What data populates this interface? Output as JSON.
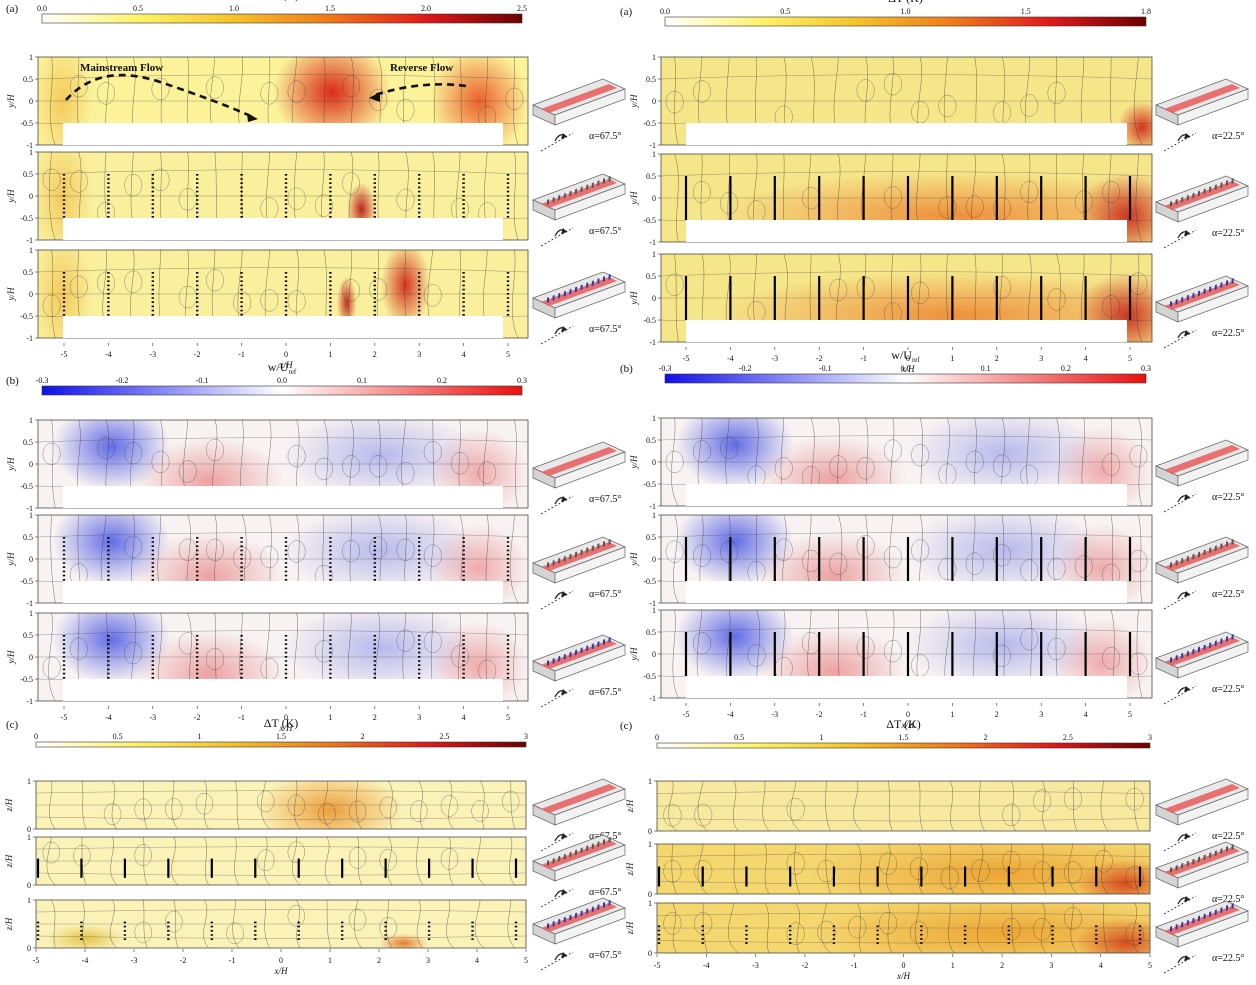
{
  "chart_data": [
    {
      "panel": "(a)",
      "side": "left",
      "type": "heatmap",
      "title": "ΔT (K)",
      "ticks": [
        "0.0",
        "0.5",
        "1.0",
        "1.5",
        "2.0",
        "2.5"
      ],
      "range": [
        0,
        2.5
      ],
      "colormap": "hot",
      "ylabel": "y/H",
      "ylim": [
        -1,
        1
      ],
      "yticks": [
        "1",
        "0.5",
        "0",
        "-0.5",
        "-1"
      ],
      "xlabel": "x/H",
      "xticks": [
        "-5",
        "-4",
        "-3",
        "-2",
        "-1",
        "0",
        "1",
        "2",
        "3",
        "4",
        "5"
      ],
      "xlim": [
        -5.5,
        5.5
      ],
      "annotations": [
        "Mainstream Flow",
        "Reverse Flow"
      ],
      "alpha_label": "α=67.5°"
    },
    {
      "panel": "(a)",
      "side": "right",
      "type": "heatmap",
      "title": "ΔT (K)",
      "ticks": [
        "0.0",
        "0.5",
        "1.0",
        "1.5",
        "1.8"
      ],
      "range": [
        0,
        1.8
      ],
      "colormap": "hot",
      "ylabel": "y/H",
      "ylim": [
        -1,
        1
      ],
      "yticks": [
        "1",
        "0.5",
        "0",
        "-0.5",
        "-1"
      ],
      "xlabel": "x/H",
      "xticks": [
        "-5",
        "-4",
        "-3",
        "-2",
        "-1",
        "0",
        "1",
        "2",
        "3",
        "4",
        "5"
      ],
      "xlim": [
        -5.5,
        5.5
      ],
      "alpha_label": "α=22.5°"
    },
    {
      "panel": "(b)",
      "side": "left",
      "type": "heatmap",
      "title": "w/U",
      "title_sub": "ref",
      "ticks": [
        "-0.3",
        "-0.2",
        "-0.1",
        "0.0",
        "0.1",
        "0.2",
        "0.3"
      ],
      "range": [
        -0.3,
        0.3
      ],
      "colormap": "bwr",
      "ylabel": "y/H",
      "ylim": [
        -1,
        1
      ],
      "yticks": [
        "1",
        "0.5",
        "0",
        "-0.5",
        "-1"
      ],
      "xlabel": "x/H",
      "xticks": [
        "-5",
        "-4",
        "-3",
        "-2",
        "-1",
        "0",
        "1",
        "2",
        "3",
        "4",
        "5"
      ],
      "alpha_label": "α=67.5°"
    },
    {
      "panel": "(b)",
      "side": "right",
      "type": "heatmap",
      "title": "w/U",
      "title_sub": "ref",
      "ticks": [
        "-0.3",
        "-0.2",
        "-0.1",
        "0.0",
        "0.1",
        "0.2",
        "0.3"
      ],
      "range": [
        -0.3,
        0.3
      ],
      "colormap": "bwr",
      "ylabel": "y/H",
      "ylim": [
        -1,
        1
      ],
      "yticks": [
        "1",
        "0.5",
        "0",
        "-0.5",
        "-1"
      ],
      "xlabel": "x/H",
      "xticks": [
        "-5",
        "-4",
        "-3",
        "-2",
        "-1",
        "0",
        "1",
        "2",
        "3",
        "4",
        "5"
      ],
      "alpha_label": "α=22.5°"
    },
    {
      "panel": "(c)",
      "side": "left",
      "type": "heatmap",
      "title": "ΔT (K)",
      "ticks": [
        "0",
        "0.5",
        "1",
        "1.5",
        "2",
        "2.5",
        "3"
      ],
      "range": [
        0,
        3
      ],
      "colormap": "hot",
      "ylabel": "z/H",
      "ylim": [
        0,
        1
      ],
      "yticks": [
        "1",
        "0"
      ],
      "xlabel": "x/H",
      "xticks": [
        "-5",
        "-4",
        "-3",
        "-2",
        "-1",
        "0",
        "1",
        "2",
        "3",
        "4",
        "5"
      ],
      "xlim": [
        -5,
        5
      ],
      "alpha_label": "α=67.5°"
    },
    {
      "panel": "(c)",
      "side": "right",
      "type": "heatmap",
      "title": "ΔT (K)",
      "ticks": [
        "0",
        "0.5",
        "1",
        "1.5",
        "2",
        "2.5",
        "3"
      ],
      "range": [
        0,
        3
      ],
      "colormap": "hot",
      "ylabel": "z/H",
      "ylim": [
        0,
        1
      ],
      "yticks": [
        "1",
        "0"
      ],
      "xlabel": "x/H",
      "xticks": [
        "-5",
        "-4",
        "-3",
        "-2",
        "-1",
        "0",
        "1",
        "2",
        "3",
        "4",
        "5"
      ],
      "xlim": [
        -5,
        5
      ],
      "alpha_label": "α=22.5°"
    }
  ],
  "colors": {
    "hot": [
      "#ffffff",
      "#fff36a",
      "#f4c22a",
      "#ef7a1a",
      "#e0191a",
      "#6b0000"
    ],
    "bwr": [
      "#1010e8",
      "#ffffff",
      "#e81010"
    ],
    "channel_base": "#f6f0c8"
  }
}
